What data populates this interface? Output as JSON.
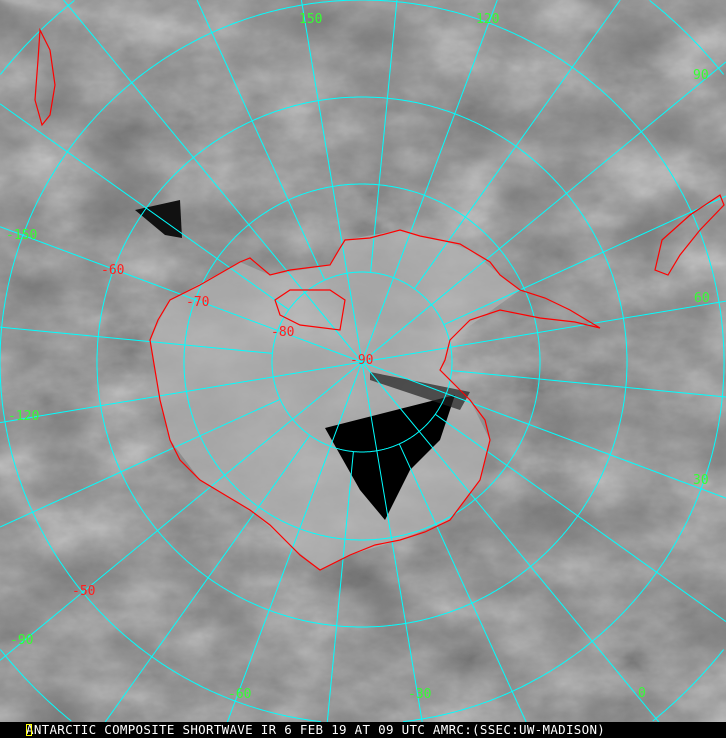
{
  "caption": "ANTARCTIC COMPOSITE SHORTWAVE IR 6 FEB 19 AT 09 UTC AMRC:(SSEC:UW-MADISON)",
  "projection": "south-polar stereographic",
  "colors": {
    "graticule": "#00ffff",
    "coastline": "#ff0000",
    "longitude_labels": "#33ff33",
    "latitude_labels": "#ff2020"
  },
  "longitude_labels": [
    "150",
    "120",
    "90",
    "60",
    "30",
    "0",
    "-30",
    "-60",
    "-90",
    "-120",
    "-150"
  ],
  "latitude_labels": [
    "-50",
    "-60",
    "-70",
    "-80",
    "-90"
  ]
}
